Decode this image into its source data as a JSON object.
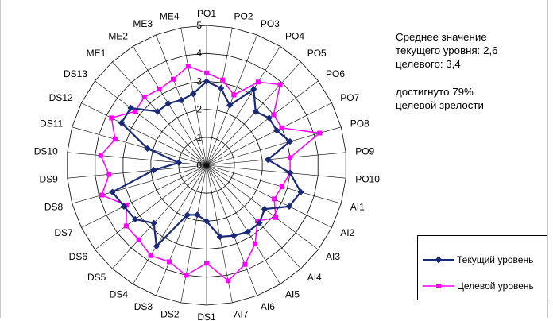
{
  "note": {
    "line1": "Среднее значение",
    "line2": "текущего уровня: 2,6",
    "line3": "целевого: 3,4",
    "line4": "достигнуто 79%",
    "line5": "целевой зрелости"
  },
  "colors": {
    "current": "#1a2a7a",
    "target": "#ff00ff",
    "grid": "#000000"
  },
  "chart_data": {
    "type": "radar",
    "categories": [
      "PO1",
      "PO2",
      "PO3",
      "PO4",
      "PO5",
      "PO6",
      "PO7",
      "PO8",
      "PO9",
      "PO10",
      "AI1",
      "AI2",
      "AI3",
      "AI4",
      "AI5",
      "AI6",
      "AI7",
      "DS1",
      "DS2",
      "DS3",
      "DS4",
      "DS5",
      "DS6",
      "DS7",
      "DS8",
      "DS9",
      "DS10",
      "DS11",
      "DS12",
      "DS13",
      "ME1",
      "ME2",
      "ME3",
      "ME4"
    ],
    "r_ticks": [
      "0",
      "1",
      "2",
      "3",
      "4",
      "5"
    ],
    "rlim": [
      0,
      5
    ],
    "series": [
      {
        "name": "Текущий уровень",
        "values": [
          3.0,
          2.8,
          2.3,
          3.2,
          2.6,
          2.8,
          2.8,
          3.1,
          2.2,
          3.0,
          3.5,
          3.3,
          2.6,
          2.8,
          2.8,
          2.7,
          2.6,
          2.0,
          1.8,
          1.9,
          3.4,
          2.8,
          3.2,
          3.3,
          3.5,
          1.9,
          1.0,
          2.2,
          3.4,
          3.4,
          2.6,
          2.6,
          2.5,
          2.6
        ]
      },
      {
        "name": "Целевой уровень",
        "values": [
          3.3,
          3.1,
          2.7,
          3.5,
          3.9,
          3.0,
          3.0,
          4.2,
          3.0,
          3.0,
          2.8,
          2.7,
          3.1,
          2.7,
          3.3,
          3.8,
          4.2,
          3.5,
          4.0,
          3.7,
          3.8,
          3.6,
          3.6,
          3.2,
          3.9,
          3.5,
          3.8,
          3.4,
          3.8,
          3.2,
          3.3,
          3.2,
          3.3,
          3.6
        ]
      }
    ]
  }
}
